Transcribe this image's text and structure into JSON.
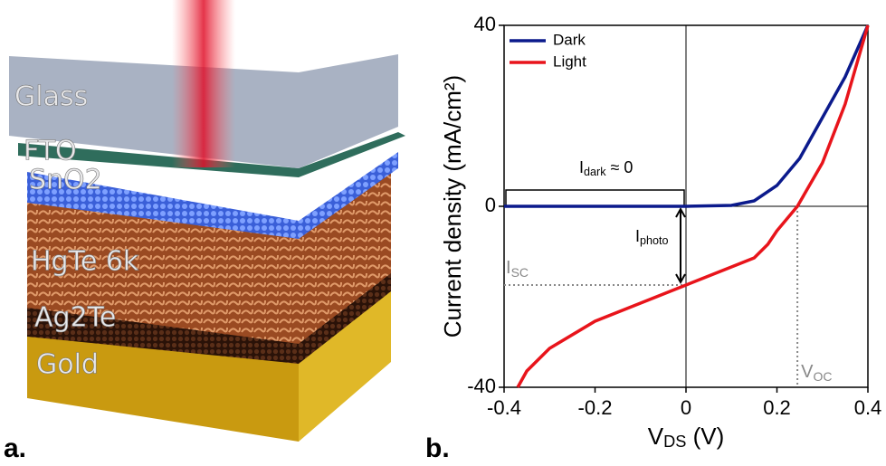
{
  "illustration": {
    "layers": [
      "Glass",
      "FTO",
      "SnO2",
      "HgTe 6k",
      "Ag2Te",
      "Gold"
    ],
    "panel_label": "a."
  },
  "chart_data": {
    "type": "line",
    "panel_label": "b.",
    "xlabel": {
      "base": "V",
      "sub": "DS",
      "after": " (V)"
    },
    "ylabel": "Current density (mA/cm²)",
    "xlim": [
      -0.4,
      0.4
    ],
    "xticks": [
      -0.4,
      -0.2,
      0,
      0.2,
      0.4
    ],
    "ylim": [
      -40,
      40
    ],
    "yticks": [
      -40,
      0,
      40
    ],
    "legend": "top-left",
    "series": [
      {
        "name": "Dark",
        "color": "#0b1a8c",
        "x": [
          -0.4,
          -0.2,
          0,
          0.1,
          0.15,
          0.2,
          0.25,
          0.3,
          0.35,
          0.4
        ],
        "values": [
          0,
          0,
          0,
          0.2,
          1.2,
          4.6,
          10.6,
          19.6,
          28.6,
          40
        ]
      },
      {
        "name": "Light",
        "color": "#e8141b",
        "x": [
          -0.37,
          -0.35,
          -0.3,
          -0.2,
          -0.1,
          0,
          0.1,
          0.15,
          0.18,
          0.2,
          0.245,
          0.3,
          0.35,
          0.4
        ],
        "values": [
          -40,
          -36.4,
          -31.4,
          -25.4,
          -21.4,
          -17.4,
          -13.4,
          -11.4,
          -8.4,
          -5.4,
          0,
          9.6,
          22.6,
          40
        ]
      }
    ],
    "isc": -17.4,
    "voc": 0.245,
    "annotations": {
      "dark": {
        "base": "I",
        "sub": "dark",
        "after": " ≈ 0"
      },
      "photo": {
        "base": "I",
        "sub": "photo"
      },
      "isc": {
        "base": "I",
        "sub": "SC"
      },
      "voc": {
        "base": "V",
        "sub": "OC"
      }
    }
  }
}
